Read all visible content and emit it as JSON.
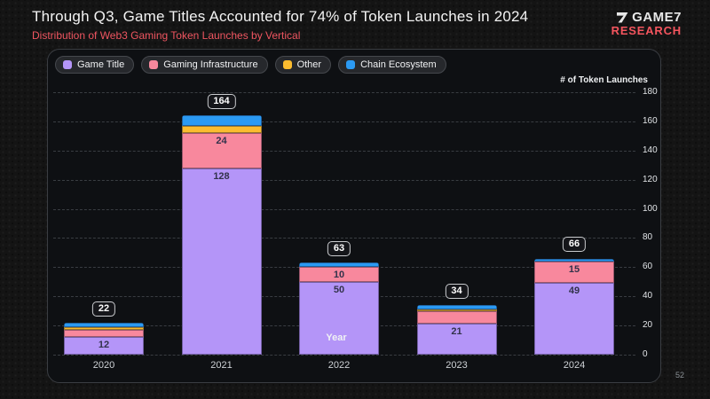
{
  "header": {
    "title": "Through Q3, Game Titles Accounted for 74% of Token Launches in 2024",
    "subtitle": "Distribution of Web3 Gaming Token Launches by Vertical"
  },
  "logo": {
    "name": "GAME7",
    "sub": "RESEARCH",
    "mark": "7-glyph"
  },
  "page_number": "52",
  "colors": {
    "game_title": "#b495f8",
    "gaming_infrastructure": "#f8889d",
    "other": "#fbbc2f",
    "chain_ecosystem": "#2b9af3",
    "accent_red": "#ef5560",
    "card_bg": "#0e1013"
  },
  "chart_data": {
    "type": "bar",
    "stacked": true,
    "title": "Through Q3, Game Titles Accounted for 74% of Token Launches in 2024",
    "subtitle": "Distribution of Web3 Gaming Token Launches by Vertical",
    "categories": [
      "2020",
      "2021",
      "2022",
      "2023",
      "2024"
    ],
    "series": [
      {
        "name": "Game Title",
        "color": "#b495f8",
        "values": [
          12,
          128,
          50,
          21,
          49
        ]
      },
      {
        "name": "Gaming Infrastructure",
        "color": "#f8889d",
        "values": [
          5,
          24,
          10,
          9,
          15
        ]
      },
      {
        "name": "Other",
        "color": "#fbbc2f",
        "values": [
          2,
          5,
          0,
          1,
          0
        ]
      },
      {
        "name": "Chain Ecosystem",
        "color": "#2b9af3",
        "values": [
          3,
          7,
          3,
          3,
          2
        ]
      }
    ],
    "totals": [
      22,
      164,
      63,
      34,
      66
    ],
    "visible_segment_labels": [
      12,
      128,
      24,
      50,
      10,
      21,
      49,
      15
    ],
    "xlabel": "Year",
    "ylabel": "# of Token Launches",
    "ylim": [
      0,
      180
    ],
    "yticks": [
      0,
      20,
      40,
      60,
      80,
      100,
      120,
      140,
      160,
      180
    ],
    "grid": true,
    "legend_position": "top-left",
    "value_label_min": 10
  }
}
